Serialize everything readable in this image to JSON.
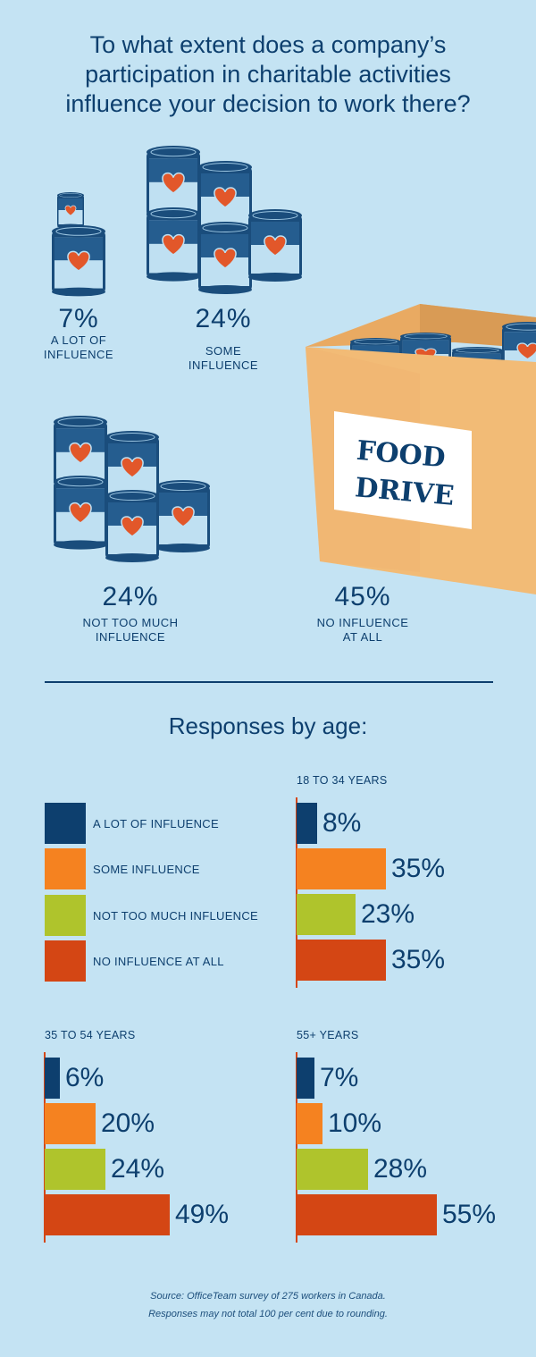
{
  "title": "To what extent does a company’s\nparticipation in charitable activities\ninfluence your decision to work there?",
  "overall": [
    {
      "pct": "7%",
      "label": "A LOT OF\nINFLUENCE",
      "icon": "can-stack-icon"
    },
    {
      "pct": "24%",
      "label": "SOME\nINFLUENCE",
      "icon": "can-stack-icon"
    },
    {
      "pct": "24%",
      "label": "NOT TOO MUCH\nINFLUENCE",
      "icon": "can-stack-icon"
    },
    {
      "pct": "45%",
      "label": "NO INFLUENCE\nAT ALL",
      "icon": "food-drive-box-icon"
    }
  ],
  "box_label": {
    "line1": "FOOD",
    "line2": "DRIVE"
  },
  "subtitle": "Responses by age:",
  "colors": {
    "background": "#c4e3f3",
    "text": "#0d3f6e",
    "a_lot": "#0d3f6e",
    "some": "#f58220",
    "not_too_much": "#afc42c",
    "none": "#d44614",
    "box": "#f1b872"
  },
  "source": "Source: OfficeTeam survey of 275 workers in Canada.\nResponses may not total 100 per cent due to rounding.",
  "chart_data": {
    "type": "bar",
    "orientation": "horizontal",
    "title": "Responses by age:",
    "categories": [
      "A LOT OF INFLUENCE",
      "SOME INFLUENCE",
      "NOT TOO MUCH INFLUENCE",
      "NO INFLUENCE AT ALL"
    ],
    "legend": [
      "A LOT OF INFLUENCE",
      "SOME INFLUENCE",
      "NOT TOO MUCH INFLUENCE",
      "NO INFLUENCE AT ALL"
    ],
    "legend_placement": "top-left",
    "groups": [
      {
        "name": "18 TO 34 YEARS",
        "values": [
          8,
          35,
          23,
          35
        ],
        "labels": [
          "8%",
          "35%",
          "23%",
          "35%"
        ]
      },
      {
        "name": "35 TO 54 YEARS",
        "values": [
          6,
          20,
          24,
          49
        ],
        "labels": [
          "6%",
          "20%",
          "24%",
          "49%"
        ]
      },
      {
        "name": "55+ YEARS",
        "values": [
          7,
          10,
          28,
          55
        ],
        "labels": [
          "7%",
          "10%",
          "28%",
          "55%"
        ]
      }
    ],
    "overall": {
      "categories": [
        "A LOT OF INFLUENCE",
        "SOME INFLUENCE",
        "NOT TOO MUCH INFLUENCE",
        "NO INFLUENCE AT ALL"
      ],
      "values": [
        7,
        24,
        24,
        45
      ]
    },
    "unit": "%",
    "grid": false
  }
}
